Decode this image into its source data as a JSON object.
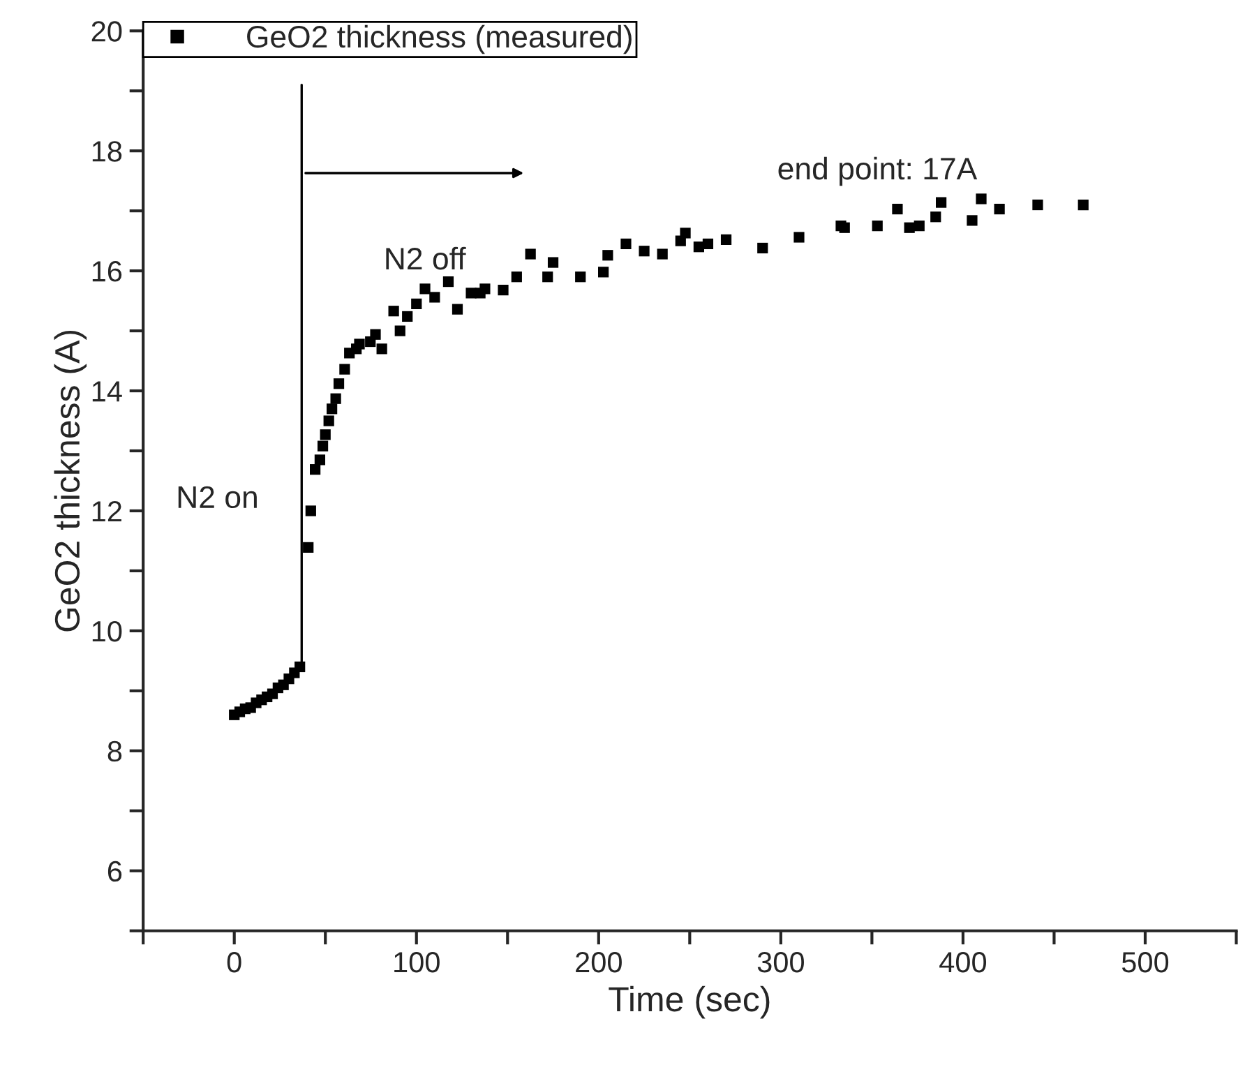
{
  "chart_data": {
    "type": "scatter",
    "xlabel": "Time (sec)",
    "ylabel": "GeO2 thickness (A)",
    "x": [
      0,
      3,
      6,
      9,
      12,
      15,
      18,
      21,
      24,
      27,
      30,
      33,
      36,
      40.6,
      42,
      44.4,
      47,
      48.6,
      50,
      51.9,
      53.6,
      55.7,
      57.4,
      60.6,
      63.2,
      67,
      68.7,
      74.7,
      77.5,
      81,
      87.5,
      91,
      95,
      100,
      104.7,
      110,
      117.5,
      122.5,
      130,
      135,
      137.6,
      147.6,
      155,
      162.6,
      172,
      175,
      190,
      202.6,
      205,
      215,
      225,
      235,
      245,
      247.6,
      255,
      260,
      270,
      290,
      310,
      333,
      335,
      353,
      364,
      370.6,
      376,
      385,
      388,
      405,
      410,
      420,
      441,
      466
    ],
    "series": [
      {
        "name": "GeO2 thickness (measured)",
        "color": "#000000",
        "values": [
          8.6,
          8.65,
          8.7,
          8.72,
          8.8,
          8.85,
          8.9,
          8.95,
          9.05,
          9.1,
          9.2,
          9.3,
          9.4,
          11.39,
          12.0,
          12.69,
          12.85,
          13.08,
          13.27,
          13.5,
          13.7,
          13.87,
          14.12,
          14.36,
          14.63,
          14.7,
          14.78,
          14.82,
          14.94,
          14.7,
          15.33,
          15.0,
          15.24,
          15.45,
          15.7,
          15.56,
          15.82,
          15.36,
          15.63,
          15.63,
          15.7,
          15.68,
          15.9,
          16.28,
          15.9,
          16.14,
          15.9,
          15.98,
          16.26,
          16.45,
          16.33,
          16.28,
          16.5,
          16.63,
          16.4,
          16.45,
          16.52,
          16.38,
          16.56,
          16.75,
          16.72,
          16.75,
          17.03,
          16.72,
          16.75,
          16.9,
          17.14,
          16.84,
          17.2,
          17.03,
          17.1,
          17.1
        ]
      }
    ],
    "xlim": [
      -50,
      550
    ],
    "xticks": [
      0,
      100,
      200,
      300,
      400,
      500
    ],
    "ylim": [
      5,
      20
    ],
    "yticks": [
      6,
      8,
      10,
      12,
      14,
      16,
      18,
      20
    ],
    "marker": "square",
    "legend": "top left",
    "grid": false,
    "ref_lines": [
      {
        "axis": "x",
        "value": 37,
        "color": "#000000"
      }
    ],
    "annotations": [
      "N2 on",
      "N2 off",
      "end point: 17A"
    ]
  }
}
